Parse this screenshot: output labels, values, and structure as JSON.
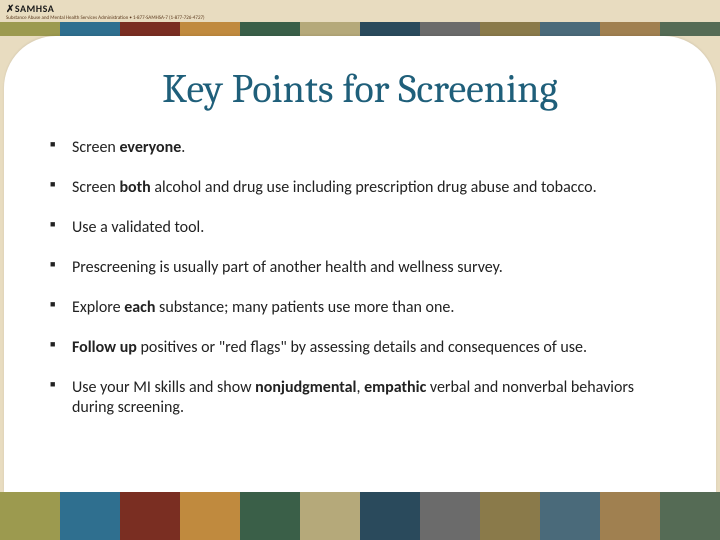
{
  "logo": {
    "main": "✗SAMHSA",
    "sub": "Substance Abuse and Mental Health Services Administration • 1-877-SAMHSA-7 (1-877-726-4727)"
  },
  "title": "Key Points for Screening",
  "bullets": [
    {
      "html": "Screen <b>everyone</b>."
    },
    {
      "html": "Screen <b>both</b> alcohol and drug use including prescription drug abuse and tobacco."
    },
    {
      "html": "Use a validated tool."
    },
    {
      "html": "Prescreening is usually part of another health and wellness survey."
    },
    {
      "html": "Explore <b>each</b> substance; many patients use more than one."
    },
    {
      "html": "<b>Follow up</b> positives or \"red flags\" by assessing details and consequences of use."
    },
    {
      "html": "Use your MI skills and show <b>nonjudgmental</b>, <b>empathic</b> verbal and nonverbal behaviors during screening."
    }
  ],
  "stripe_colors": [
    "#9c9a4f",
    "#2f6f8f",
    "#7a2e22",
    "#c08a3e",
    "#3a5f48",
    "#b5a97a",
    "#2a4a5c",
    "#6b6b6b",
    "#8a7a4a",
    "#4a6a7a",
    "#a08050",
    "#556b55"
  ],
  "styles": {
    "background_color": "#e8dcc0",
    "panel_color": "#ffffff",
    "title_color": "#1f5f7a",
    "title_fontsize_pt": 32,
    "body_fontsize_pt": 14,
    "bullet_marker": "■",
    "body_font": "Calibri",
    "title_font": "Cambria"
  }
}
